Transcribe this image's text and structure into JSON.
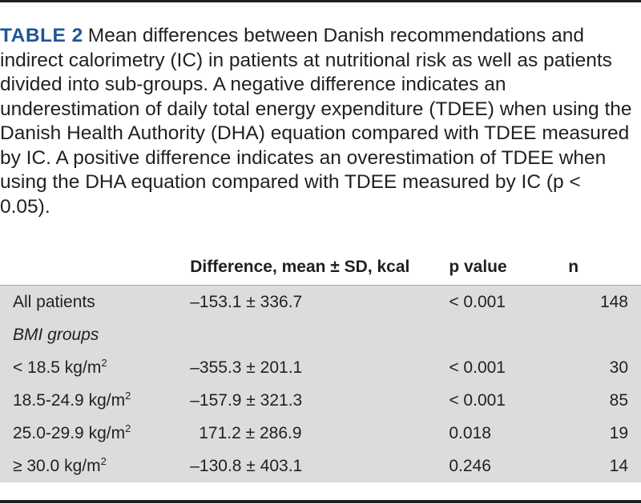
{
  "caption": {
    "label": "TABLE 2",
    "text": "Mean differences between Danish recommendations and indirect calorimetry (IC) in patients at nutritional risk as well as patients divided into sub-groups. A negative difference indicates an underestimation of daily total energy expenditure (TDEE) when using the Danish Health Authority (DHA) equation compared with TDEE measured by IC. A positive difference indicates an overestimation of TDEE when using the DHA equation compared with TDEE measured by IC (p < 0.05)."
  },
  "table": {
    "headers": {
      "group": "",
      "difference": "Difference, mean ± SD, kcal",
      "p": "p value",
      "n": "n"
    },
    "all_patients": {
      "group": "All patients",
      "difference": "–153.1 ± 336.7",
      "p": "< 0.001",
      "n": "148"
    },
    "bmi_heading": "BMI groups",
    "bmi_rows": [
      {
        "group": "< 18.5 kg/m",
        "sup": "2",
        "difference": "–355.3 ± 201.1",
        "p": "< 0.001",
        "n": "30"
      },
      {
        "group": "18.5-24.9 kg/m",
        "sup": "2",
        "difference": "–157.9 ± 321.3",
        "p": "< 0.001",
        "n": "85"
      },
      {
        "group": "25.0-29.9 kg/m",
        "sup": "2",
        "difference": "171.2 ± 286.9",
        "p": "0.018",
        "n": "19"
      },
      {
        "group": "≥ 30.0 kg/m",
        "sup": "2",
        "difference": "–130.8 ± 403.1",
        "p": "0.246",
        "n": "14"
      }
    ]
  },
  "colors": {
    "label": "#1f5597",
    "shade": "#dcdcdd",
    "text": "#231f20"
  }
}
